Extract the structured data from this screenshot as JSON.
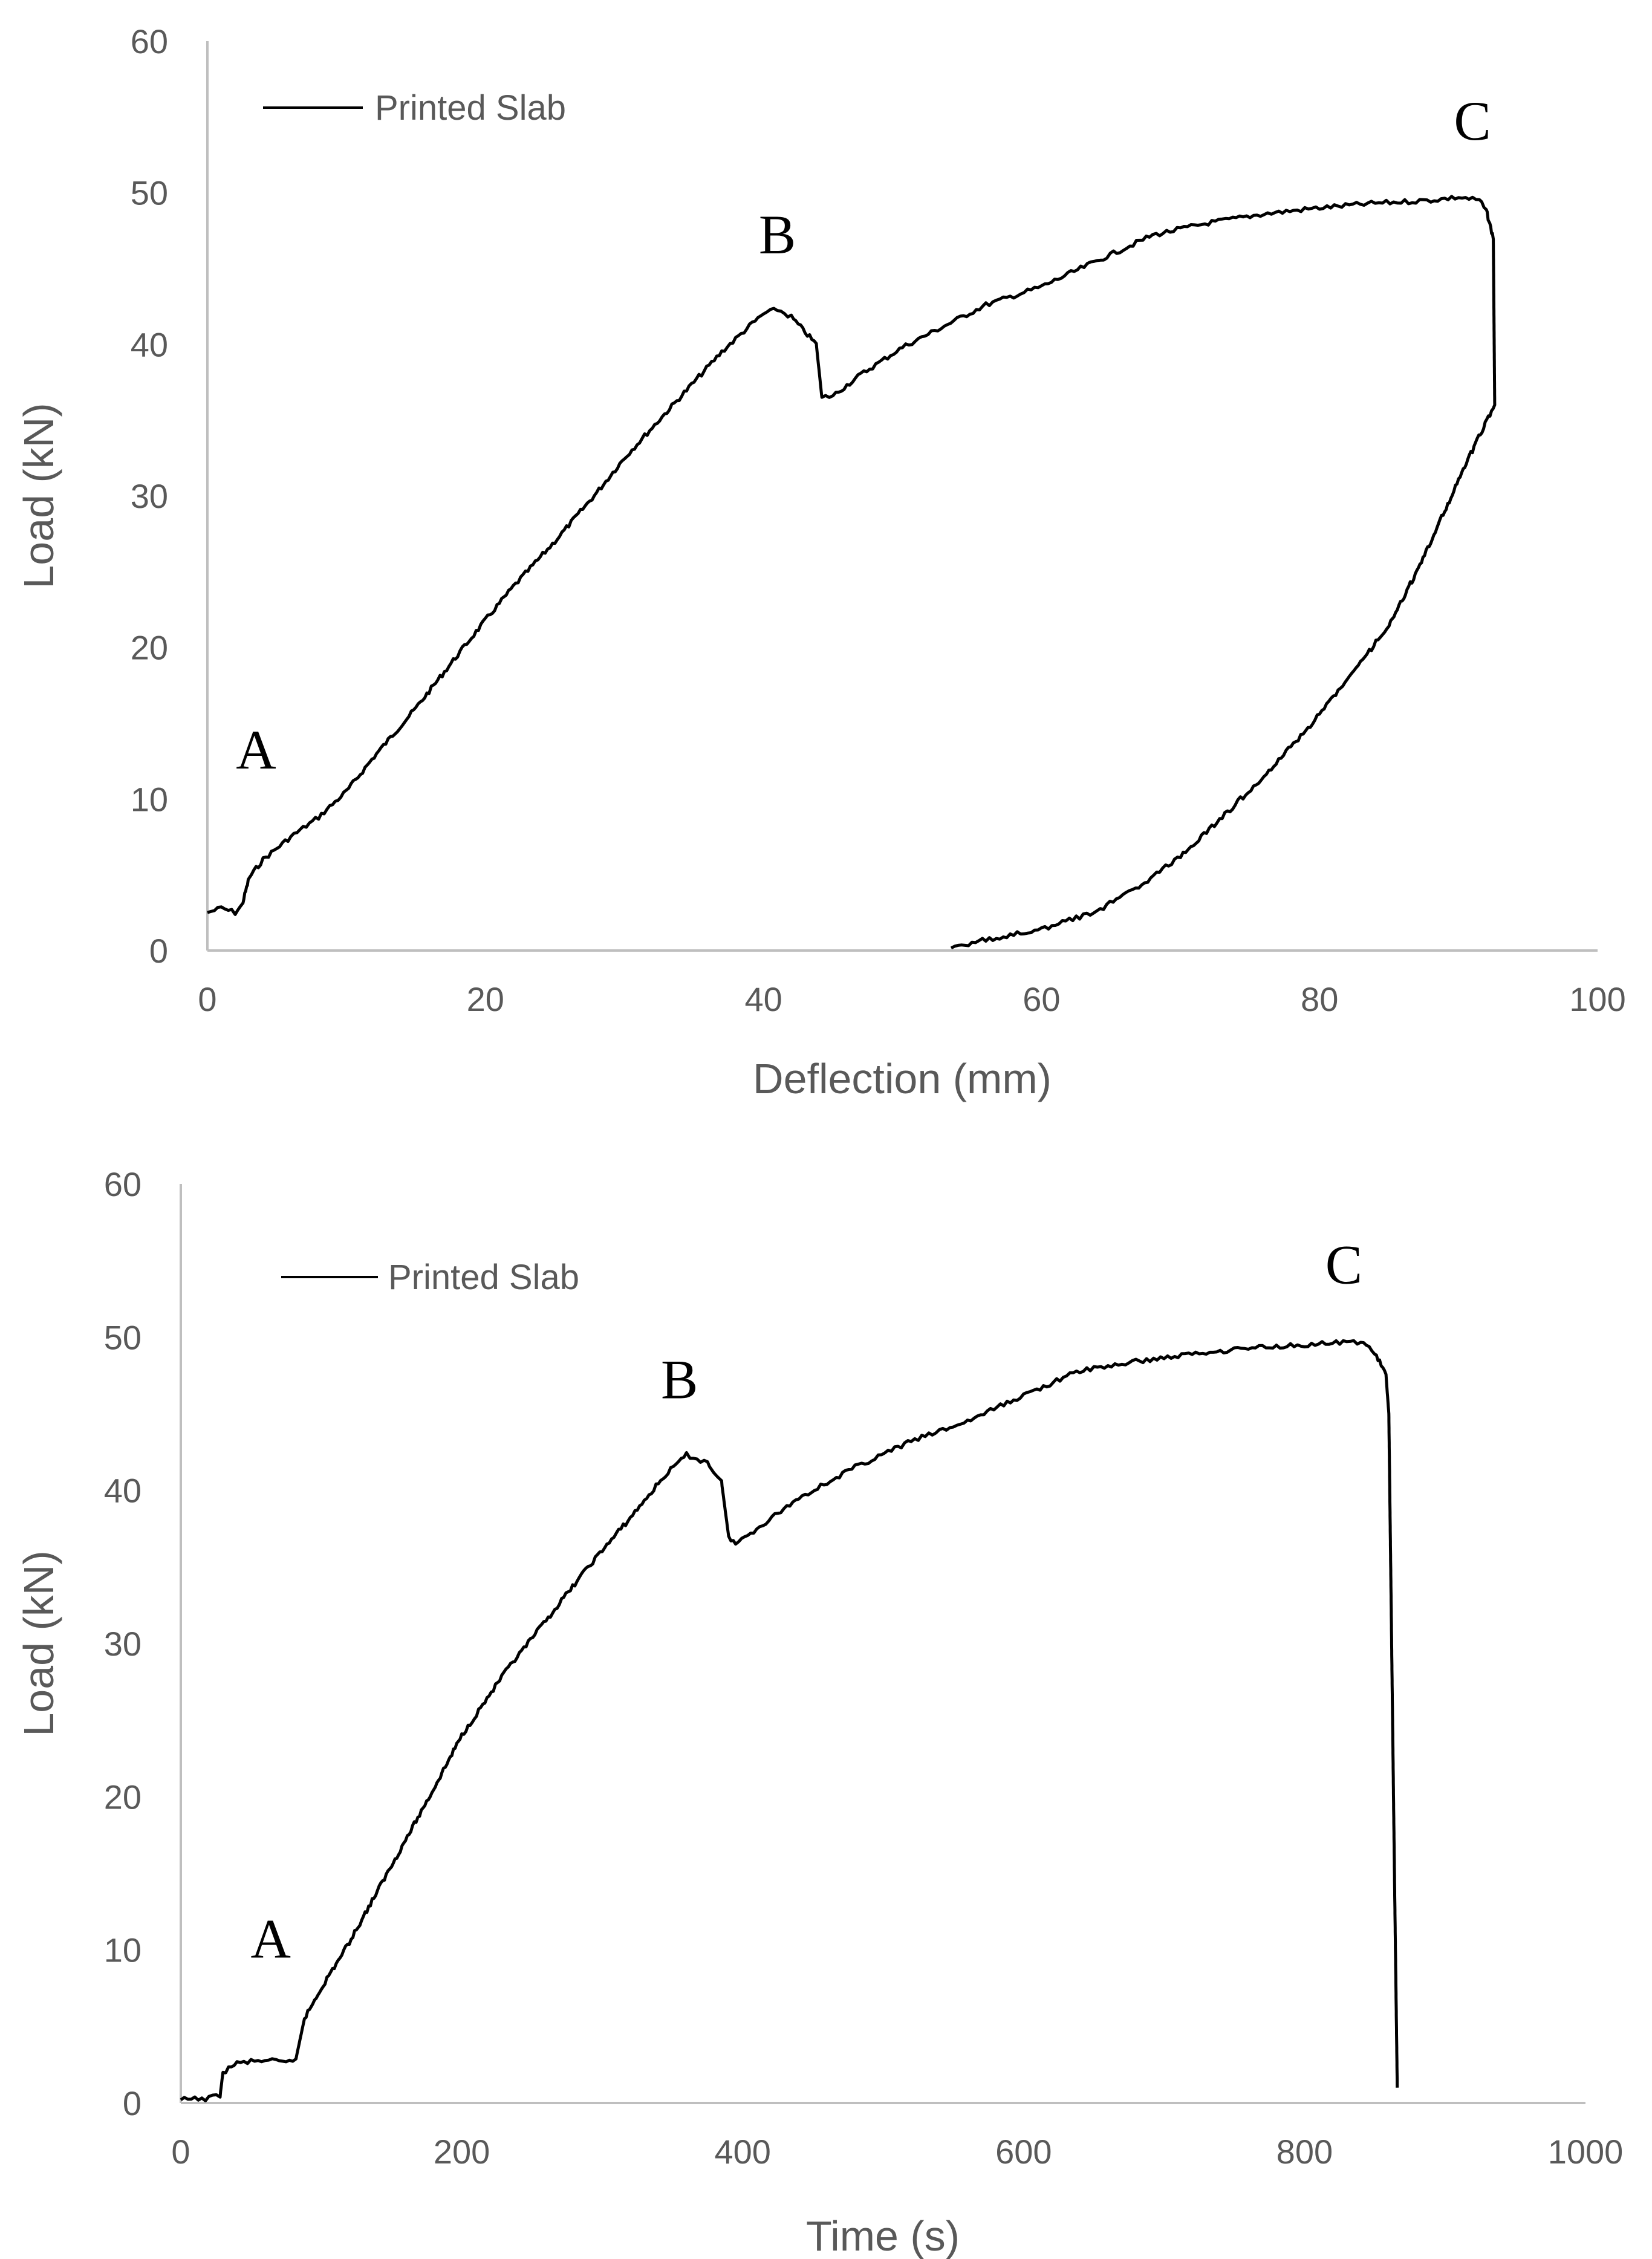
{
  "chart_data": [
    {
      "type": "line",
      "xlabel": "Deflection (mm)",
      "ylabel": "Load (kN)",
      "xlim": [
        0,
        100
      ],
      "ylim": [
        0,
        60
      ],
      "xticks": [
        "0",
        "20",
        "40",
        "60",
        "80",
        "100"
      ],
      "yticks": [
        "0",
        "10",
        "20",
        "30",
        "40",
        "50",
        "60"
      ],
      "grid": false,
      "legend": {
        "label": "Printed Slab",
        "position": "top-left"
      },
      "annotations": [
        {
          "text": "A",
          "x": 3.5,
          "y": 12
        },
        {
          "text": "B",
          "x": 41,
          "y": 46
        },
        {
          "text": "C",
          "x": 91,
          "y": 53.5
        }
      ],
      "series": [
        {
          "name": "Printed Slab",
          "points": [
            [
              0,
              2.5
            ],
            [
              1,
              2.8
            ],
            [
              2,
              2.5
            ],
            [
              2.5,
              3.0
            ],
            [
              3,
              4.8
            ],
            [
              4,
              6.0
            ],
            [
              6,
              7.5
            ],
            [
              8,
              8.8
            ],
            [
              10,
              10.5
            ],
            [
              12,
              12.8
            ],
            [
              15,
              16.0
            ],
            [
              18,
              19.5
            ],
            [
              20,
              21.8
            ],
            [
              22,
              24.0
            ],
            [
              25,
              27.0
            ],
            [
              28,
              30.2
            ],
            [
              30,
              32.5
            ],
            [
              32,
              34.5
            ],
            [
              35,
              37.5
            ],
            [
              37,
              39.5
            ],
            [
              39,
              41.2
            ],
            [
              40,
              42.0
            ],
            [
              41,
              42.3
            ],
            [
              42,
              41.8
            ],
            [
              43,
              40.8
            ],
            [
              43.8,
              40.0
            ],
            [
              44.2,
              36.5
            ],
            [
              45,
              36.6
            ],
            [
              47,
              38.0
            ],
            [
              50,
              39.8
            ],
            [
              53,
              41.2
            ],
            [
              56,
              42.6
            ],
            [
              60,
              43.8
            ],
            [
              64,
              45.5
            ],
            [
              68,
              47.2
            ],
            [
              72,
              48.0
            ],
            [
              76,
              48.6
            ],
            [
              80,
              49.0
            ],
            [
              84,
              49.3
            ],
            [
              88,
              49.5
            ],
            [
              90,
              49.7
            ],
            [
              91.5,
              49.5
            ],
            [
              92,
              48.8
            ],
            [
              92.5,
              47.0
            ],
            [
              92.6,
              36.0
            ],
            [
              91,
              33.0
            ],
            [
              89,
              29.0
            ],
            [
              87,
              25.0
            ],
            [
              85,
              21.5
            ],
            [
              82,
              17.8
            ],
            [
              79,
              14.5
            ],
            [
              76,
              11.5
            ],
            [
              73,
              8.8
            ],
            [
              70,
              6.2
            ],
            [
              67,
              4.2
            ],
            [
              64,
              2.6
            ],
            [
              60,
              1.4
            ],
            [
              57,
              0.9
            ],
            [
              55,
              0.5
            ],
            [
              53.5,
              0.1
            ]
          ]
        }
      ]
    },
    {
      "type": "line",
      "xlabel": "Time (s)",
      "ylabel": "Load (kN)",
      "xlim": [
        0,
        1000
      ],
      "ylim": [
        0,
        60
      ],
      "xticks": [
        "0",
        "200",
        "400",
        "600",
        "800",
        "1000"
      ],
      "yticks": [
        "0",
        "10",
        "20",
        "30",
        "40",
        "50",
        "60"
      ],
      "grid": false,
      "legend": {
        "label": "Printed Slab",
        "position": "top-left"
      },
      "annotations": [
        {
          "text": "A",
          "x": 64,
          "y": 9.5
        },
        {
          "text": "B",
          "x": 355,
          "y": 46
        },
        {
          "text": "C",
          "x": 828,
          "y": 53.5
        }
      ],
      "series": [
        {
          "name": "Printed Slab",
          "points": [
            [
              0,
              0.2
            ],
            [
              20,
              0.3
            ],
            [
              28,
              0.5
            ],
            [
              30,
              2.0
            ],
            [
              40,
              2.6
            ],
            [
              60,
              2.8
            ],
            [
              75,
              2.6
            ],
            [
              82,
              2.9
            ],
            [
              88,
              5.5
            ],
            [
              100,
              7.5
            ],
            [
              120,
              10.5
            ],
            [
              150,
              15.5
            ],
            [
              180,
              20.5
            ],
            [
              200,
              24.0
            ],
            [
              230,
              28.0
            ],
            [
              260,
              31.5
            ],
            [
              290,
              35.0
            ],
            [
              320,
              38.2
            ],
            [
              345,
              41.0
            ],
            [
              360,
              42.3
            ],
            [
              375,
              41.8
            ],
            [
              385,
              40.5
            ],
            [
              390,
              37.0
            ],
            [
              395,
              36.5
            ],
            [
              410,
              37.5
            ],
            [
              440,
              39.5
            ],
            [
              480,
              41.5
            ],
            [
              520,
              43.2
            ],
            [
              560,
              44.5
            ],
            [
              600,
              46.2
            ],
            [
              640,
              47.8
            ],
            [
              680,
              48.4
            ],
            [
              720,
              48.9
            ],
            [
              760,
              49.3
            ],
            [
              800,
              49.5
            ],
            [
              840,
              49.7
            ],
            [
              850,
              49.0
            ],
            [
              858,
              47.5
            ],
            [
              860,
              45.0
            ],
            [
              862,
              30.0
            ],
            [
              864,
              15.0
            ],
            [
              866,
              1.0
            ]
          ]
        }
      ]
    }
  ]
}
